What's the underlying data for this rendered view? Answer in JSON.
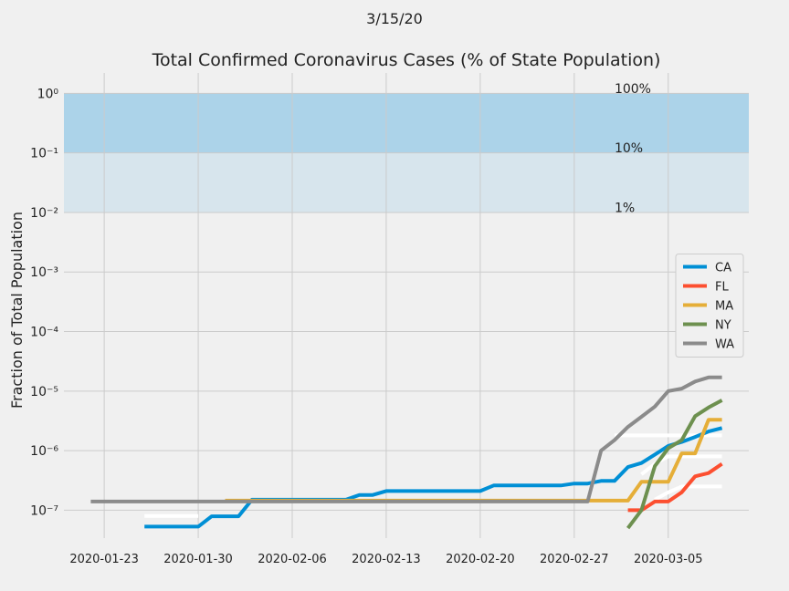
{
  "chart_data": {
    "type": "line",
    "suptitle": "3/15/20",
    "title": "Total Confirmed Coronavirus Cases (% of State Population)",
    "ylabel": "Fraction of Total Population",
    "log_y": true,
    "grid": true,
    "legend": "center right",
    "x": [
      "2020-01-22",
      "2020-01-23",
      "2020-01-24",
      "2020-01-25",
      "2020-01-26",
      "2020-01-27",
      "2020-01-28",
      "2020-01-29",
      "2020-01-30",
      "2020-01-31",
      "2020-02-01",
      "2020-02-02",
      "2020-02-03",
      "2020-02-04",
      "2020-02-05",
      "2020-02-06",
      "2020-02-07",
      "2020-02-08",
      "2020-02-09",
      "2020-02-10",
      "2020-02-11",
      "2020-02-12",
      "2020-02-13",
      "2020-02-14",
      "2020-02-15",
      "2020-02-16",
      "2020-02-17",
      "2020-02-18",
      "2020-02-19",
      "2020-02-20",
      "2020-02-21",
      "2020-02-22",
      "2020-02-23",
      "2020-02-24",
      "2020-02-25",
      "2020-02-26",
      "2020-02-27",
      "2020-02-28",
      "2020-02-29",
      "2020-03-01",
      "2020-03-02",
      "2020-03-03",
      "2020-03-04",
      "2020-03-05",
      "2020-03-06",
      "2020-03-07",
      "2020-03-08",
      "2020-03-09"
    ],
    "xlim": [
      "2020-01-20",
      "2020-03-11"
    ],
    "xticks": [
      "2020-01-23",
      "2020-01-30",
      "2020-02-06",
      "2020-02-13",
      "2020-02-20",
      "2020-02-27",
      "2020-03-05"
    ],
    "ylim": [
      3.4e-08,
      2.2
    ],
    "yticks": [
      {
        "value": 1,
        "label": "10⁰"
      },
      {
        "value": 0.1,
        "label": "10⁻¹"
      },
      {
        "value": 0.01,
        "label": "10⁻²"
      },
      {
        "value": 0.001,
        "label": "10⁻³"
      },
      {
        "value": 0.0001,
        "label": "10⁻⁴"
      },
      {
        "value": 1e-05,
        "label": "10⁻⁵"
      },
      {
        "value": 1e-06,
        "label": "10⁻⁶"
      },
      {
        "value": 1e-07,
        "label": "10⁻⁷"
      }
    ],
    "bands": [
      {
        "from": 0.1,
        "to": 1,
        "color": "#acd3e9"
      },
      {
        "from": 0.01,
        "to": 0.1,
        "color": "#d7e5ed"
      }
    ],
    "annotations": [
      {
        "text": "100%",
        "x": "2020-03-01",
        "y": 1
      },
      {
        "text": "10%",
        "x": "2020-03-01",
        "y": 0.1
      },
      {
        "text": "1%",
        "x": "2020-03-01",
        "y": 0.01
      }
    ],
    "series": [
      {
        "color": "#ffffff",
        "values": [
          null,
          null,
          null,
          null,
          8e-08,
          8e-08,
          8e-08,
          8e-08,
          8e-08,
          null,
          null,
          null,
          null,
          null,
          null,
          null,
          null,
          null,
          null,
          null,
          null,
          null,
          null,
          null,
          null,
          null,
          null,
          null,
          null,
          null,
          null,
          null,
          null,
          null,
          null,
          null,
          null,
          null,
          null,
          null,
          null,
          null,
          null,
          null,
          null,
          null,
          null,
          null
        ]
      },
      {
        "color": "#ffffff",
        "values": [
          null,
          null,
          null,
          null,
          null,
          null,
          null,
          null,
          null,
          null,
          null,
          null,
          null,
          null,
          null,
          null,
          null,
          null,
          null,
          null,
          null,
          null,
          null,
          null,
          null,
          null,
          null,
          null,
          null,
          null,
          null,
          null,
          null,
          null,
          null,
          null,
          null,
          null,
          null,
          1.8e-06,
          1.8e-06,
          1.8e-06,
          1.8e-06,
          1.8e-06,
          1.8e-06,
          1.8e-06,
          1.8e-06,
          1.8e-06
        ]
      },
      {
        "color": "#ffffff",
        "values": [
          null,
          null,
          null,
          null,
          null,
          null,
          null,
          null,
          null,
          null,
          null,
          null,
          null,
          null,
          null,
          null,
          null,
          null,
          null,
          null,
          null,
          null,
          null,
          null,
          null,
          null,
          null,
          null,
          null,
          null,
          null,
          null,
          null,
          null,
          null,
          null,
          null,
          null,
          null,
          null,
          null,
          4e-07,
          6e-07,
          8e-07,
          8e-07,
          8e-07,
          8e-07,
          8e-07
        ]
      },
      {
        "color": "#ffffff",
        "values": [
          null,
          null,
          null,
          null,
          null,
          null,
          null,
          null,
          null,
          null,
          null,
          null,
          null,
          null,
          null,
          null,
          null,
          null,
          null,
          null,
          null,
          null,
          null,
          null,
          null,
          null,
          null,
          null,
          null,
          null,
          null,
          null,
          null,
          null,
          null,
          null,
          null,
          null,
          null,
          null,
          null,
          null,
          1.5e-07,
          2e-07,
          2.5e-07,
          2.5e-07,
          2.5e-07,
          2.5e-07
        ]
      },
      {
        "name": "CA",
        "color": "#008fd5",
        "values": [
          null,
          null,
          null,
          null,
          5.3e-08,
          5.3e-08,
          5.3e-08,
          5.3e-08,
          5.3e-08,
          7.9e-08,
          7.9e-08,
          7.9e-08,
          1.5e-07,
          1.5e-07,
          1.5e-07,
          1.5e-07,
          1.5e-07,
          1.5e-07,
          1.5e-07,
          1.5e-07,
          1.8e-07,
          1.8e-07,
          2.1e-07,
          2.1e-07,
          2.1e-07,
          2.1e-07,
          2.1e-07,
          2.1e-07,
          2.1e-07,
          2.1e-07,
          2.6e-07,
          2.6e-07,
          2.6e-07,
          2.6e-07,
          2.6e-07,
          2.6e-07,
          2.8e-07,
          2.8e-07,
          3.1e-07,
          3.1e-07,
          5.3e-07,
          6.2e-07,
          8.6e-07,
          1.2e-06,
          1.4e-06,
          1.7e-06,
          2.1e-06,
          2.4e-06
        ]
      },
      {
        "name": "FL",
        "color": "#fc4f30",
        "values": [
          null,
          null,
          null,
          null,
          null,
          null,
          null,
          null,
          null,
          null,
          null,
          null,
          null,
          null,
          null,
          null,
          null,
          null,
          null,
          null,
          null,
          null,
          null,
          null,
          null,
          null,
          null,
          null,
          null,
          null,
          null,
          null,
          null,
          null,
          null,
          null,
          null,
          null,
          null,
          null,
          1e-07,
          1e-07,
          1.4e-07,
          1.4e-07,
          2e-07,
          3.7e-07,
          4.2e-07,
          6e-07
        ]
      },
      {
        "name": "MA",
        "color": "#e5ae38",
        "values": [
          null,
          null,
          null,
          null,
          null,
          null,
          null,
          null,
          null,
          null,
          1.45e-07,
          1.45e-07,
          1.45e-07,
          1.45e-07,
          1.45e-07,
          1.45e-07,
          1.45e-07,
          1.45e-07,
          1.45e-07,
          1.45e-07,
          1.45e-07,
          1.45e-07,
          1.45e-07,
          1.45e-07,
          1.45e-07,
          1.45e-07,
          1.45e-07,
          1.45e-07,
          1.45e-07,
          1.45e-07,
          1.45e-07,
          1.45e-07,
          1.45e-07,
          1.45e-07,
          1.45e-07,
          1.45e-07,
          1.45e-07,
          1.45e-07,
          1.45e-07,
          1.45e-07,
          1.45e-07,
          3e-07,
          3e-07,
          3e-07,
          9e-07,
          9e-07,
          3.3e-06,
          3.3e-06
        ]
      },
      {
        "name": "NY",
        "color": "#6d904f",
        "values": [
          null,
          null,
          null,
          null,
          null,
          null,
          null,
          null,
          null,
          null,
          null,
          null,
          null,
          null,
          null,
          null,
          null,
          null,
          null,
          null,
          null,
          null,
          null,
          null,
          null,
          null,
          null,
          null,
          null,
          null,
          null,
          null,
          null,
          null,
          null,
          null,
          null,
          null,
          null,
          null,
          5e-08,
          1e-07,
          5.5e-07,
          1.1e-06,
          1.5e-06,
          3.8e-06,
          5.3e-06,
          7e-06
        ]
      },
      {
        "name": "WA",
        "color": "#8b8b8b",
        "values": [
          1.4e-07,
          1.4e-07,
          1.4e-07,
          1.4e-07,
          1.4e-07,
          1.4e-07,
          1.4e-07,
          1.4e-07,
          1.4e-07,
          1.4e-07,
          1.4e-07,
          1.4e-07,
          1.4e-07,
          1.4e-07,
          1.4e-07,
          1.4e-07,
          1.4e-07,
          1.4e-07,
          1.4e-07,
          1.4e-07,
          1.4e-07,
          1.4e-07,
          1.4e-07,
          1.4e-07,
          1.4e-07,
          1.4e-07,
          1.4e-07,
          1.4e-07,
          1.4e-07,
          1.4e-07,
          1.4e-07,
          1.4e-07,
          1.4e-07,
          1.4e-07,
          1.4e-07,
          1.4e-07,
          1.4e-07,
          1.4e-07,
          1e-06,
          1.5e-06,
          2.5e-06,
          3.7e-06,
          5.5e-06,
          1e-05,
          1.1e-05,
          1.45e-05,
          1.7e-05,
          1.7e-05
        ]
      }
    ]
  }
}
